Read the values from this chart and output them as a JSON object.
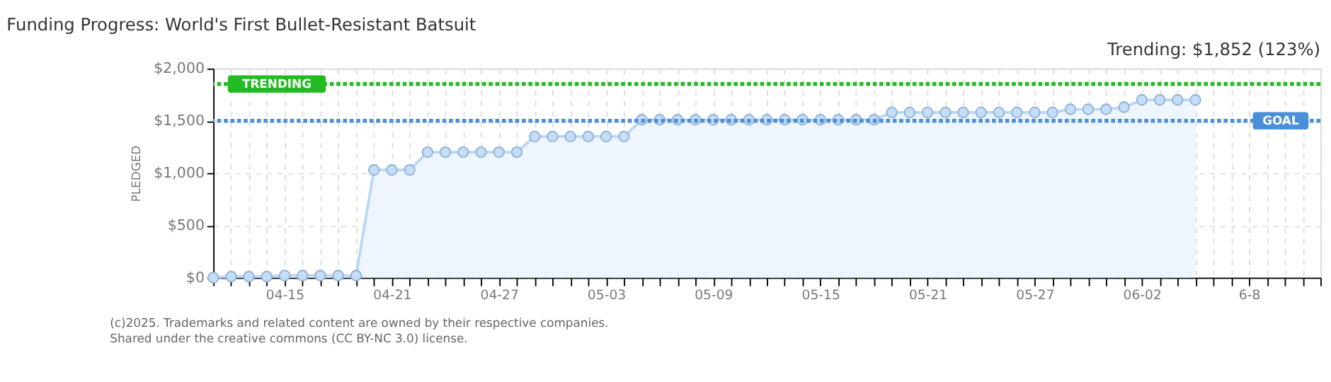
{
  "chart_data": {
    "type": "area",
    "title": "Funding Progress: World's First Bullet-Resistant Batsuit",
    "ylabel": "PLEDGED",
    "x": [
      "2025-04-11",
      "2025-04-12",
      "2025-04-13",
      "2025-04-14",
      "2025-04-15",
      "2025-04-16",
      "2025-04-17",
      "2025-04-18",
      "2025-04-19",
      "2025-04-20",
      "2025-04-21",
      "2025-04-22",
      "2025-04-23",
      "2025-04-24",
      "2025-04-25",
      "2025-04-26",
      "2025-04-27",
      "2025-04-28",
      "2025-04-29",
      "2025-04-30",
      "2025-05-01",
      "2025-05-02",
      "2025-05-03",
      "2025-05-04",
      "2025-05-05",
      "2025-05-06",
      "2025-05-07",
      "2025-05-08",
      "2025-05-09",
      "2025-05-10",
      "2025-05-11",
      "2025-05-12",
      "2025-05-13",
      "2025-05-14",
      "2025-05-15",
      "2025-05-16",
      "2025-05-17",
      "2025-05-18",
      "2025-05-19",
      "2025-05-20",
      "2025-05-21",
      "2025-05-22",
      "2025-05-23",
      "2025-05-24",
      "2025-05-25",
      "2025-05-26",
      "2025-05-27",
      "2025-05-28",
      "2025-05-29",
      "2025-05-30",
      "2025-05-31",
      "2025-06-01",
      "2025-06-02",
      "2025-06-03",
      "2025-06-04",
      "2025-06-05"
    ],
    "series": [
      {
        "color": "#b9d6f5",
        "values": [
          0,
          10,
          10,
          10,
          20,
          20,
          20,
          20,
          20,
          1030,
          1030,
          1030,
          1200,
          1200,
          1200,
          1200,
          1200,
          1200,
          1350,
          1350,
          1350,
          1350,
          1350,
          1350,
          1510,
          1510,
          1510,
          1510,
          1510,
          1510,
          1510,
          1510,
          1510,
          1510,
          1510,
          1510,
          1510,
          1510,
          1580,
          1580,
          1580,
          1580,
          1580,
          1580,
          1580,
          1580,
          1580,
          1580,
          1610,
          1610,
          1610,
          1630,
          1700,
          1700,
          1700,
          1700
        ]
      }
    ],
    "marker": "circle",
    "xlim": [
      "2025-04-11",
      "2025-06-12"
    ],
    "xticks": [
      {
        "value": "2025-04-11",
        "label": null
      },
      {
        "value": "2025-04-12",
        "label": null
      },
      {
        "value": "2025-04-13",
        "label": null
      },
      {
        "value": "2025-04-14",
        "label": null
      },
      {
        "value": "2025-04-15",
        "label": "04-15"
      },
      {
        "value": "2025-04-16",
        "label": null
      },
      {
        "value": "2025-04-17",
        "label": null
      },
      {
        "value": "2025-04-18",
        "label": null
      },
      {
        "value": "2025-04-19",
        "label": null
      },
      {
        "value": "2025-04-20",
        "label": null
      },
      {
        "value": "2025-04-21",
        "label": "04-21"
      },
      {
        "value": "2025-04-22",
        "label": null
      },
      {
        "value": "2025-04-23",
        "label": null
      },
      {
        "value": "2025-04-24",
        "label": null
      },
      {
        "value": "2025-04-25",
        "label": null
      },
      {
        "value": "2025-04-26",
        "label": null
      },
      {
        "value": "2025-04-27",
        "label": "04-27"
      },
      {
        "value": "2025-04-28",
        "label": null
      },
      {
        "value": "2025-04-29",
        "label": null
      },
      {
        "value": "2025-04-30",
        "label": null
      },
      {
        "value": "2025-05-01",
        "label": null
      },
      {
        "value": "2025-05-02",
        "label": null
      },
      {
        "value": "2025-05-03",
        "label": "05-03"
      },
      {
        "value": "2025-05-04",
        "label": null
      },
      {
        "value": "2025-05-05",
        "label": null
      },
      {
        "value": "2025-05-06",
        "label": null
      },
      {
        "value": "2025-05-07",
        "label": null
      },
      {
        "value": "2025-05-08",
        "label": null
      },
      {
        "value": "2025-05-09",
        "label": "05-09"
      },
      {
        "value": "2025-05-10",
        "label": null
      },
      {
        "value": "2025-05-11",
        "label": null
      },
      {
        "value": "2025-05-12",
        "label": null
      },
      {
        "value": "2025-05-13",
        "label": null
      },
      {
        "value": "2025-05-14",
        "label": null
      },
      {
        "value": "2025-05-15",
        "label": "05-15"
      },
      {
        "value": "2025-05-16",
        "label": null
      },
      {
        "value": "2025-05-17",
        "label": null
      },
      {
        "value": "2025-05-18",
        "label": null
      },
      {
        "value": "2025-05-19",
        "label": null
      },
      {
        "value": "2025-05-20",
        "label": null
      },
      {
        "value": "2025-05-21",
        "label": "05-21"
      },
      {
        "value": "2025-05-22",
        "label": null
      },
      {
        "value": "2025-05-23",
        "label": null
      },
      {
        "value": "2025-05-24",
        "label": null
      },
      {
        "value": "2025-05-25",
        "label": null
      },
      {
        "value": "2025-05-26",
        "label": null
      },
      {
        "value": "2025-05-27",
        "label": "05-27"
      },
      {
        "value": "2025-05-28",
        "label": null
      },
      {
        "value": "2025-05-29",
        "label": null
      },
      {
        "value": "2025-05-30",
        "label": null
      },
      {
        "value": "2025-05-31",
        "label": null
      },
      {
        "value": "2025-06-01",
        "label": null
      },
      {
        "value": "2025-06-02",
        "label": "06-02"
      },
      {
        "value": "2025-06-03",
        "label": null
      },
      {
        "value": "2025-06-04",
        "label": null
      },
      {
        "value": "2025-06-05",
        "label": null
      },
      {
        "value": "2025-06-06",
        "label": null
      },
      {
        "value": "2025-06-07",
        "label": null
      },
      {
        "value": "2025-06-08",
        "label": "6-8"
      },
      {
        "value": "2025-06-09",
        "label": null
      },
      {
        "value": "2025-06-10",
        "label": null
      },
      {
        "value": "2025-06-11",
        "label": null
      },
      {
        "value": "2025-06-12",
        "label": null
      }
    ],
    "ylim": [
      0,
      2000
    ],
    "yticks": [
      {
        "value": 0,
        "label": "$0"
      },
      {
        "value": 500,
        "label": "$500"
      },
      {
        "value": 1000,
        "label": "$1,000"
      },
      {
        "value": 1500,
        "label": "$1,500"
      },
      {
        "value": 2000,
        "label": "$2,000"
      }
    ],
    "grid": true,
    "ref_lines": [
      {
        "axis": "y",
        "value": 1852,
        "label": "TRENDING",
        "color": "#22bb22",
        "line_style": "dotted"
      },
      {
        "axis": "y",
        "value": 1500,
        "label": "GOAL",
        "color": "#4a8fd8",
        "line_style": "dotted"
      }
    ],
    "annotations": [
      "Trending: $1,852 (123%)",
      "(c)2025. Trademarks and related content are owned by their respective companies.",
      "Shared under the creative commons (CC BY-NC 3.0) license."
    ]
  }
}
